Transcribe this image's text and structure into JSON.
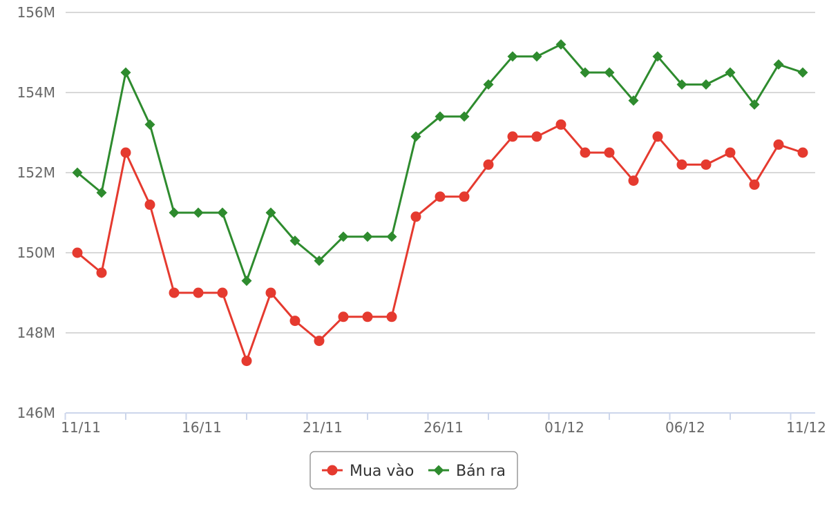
{
  "chart_data": {
    "type": "line",
    "title": "",
    "xlabel": "",
    "ylabel": "",
    "ylim": [
      146,
      156
    ],
    "y_ticks": [
      {
        "value": 146,
        "label": "146M"
      },
      {
        "value": 148,
        "label": "148M"
      },
      {
        "value": 150,
        "label": "150M"
      },
      {
        "value": 152,
        "label": "152M"
      },
      {
        "value": 154,
        "label": "154M"
      },
      {
        "value": 156,
        "label": "156M"
      }
    ],
    "x_tick_labels": [
      {
        "index": 0,
        "label": "11/11"
      },
      {
        "index": 5,
        "label": "16/11"
      },
      {
        "index": 10,
        "label": "21/11"
      },
      {
        "index": 15,
        "label": "26/11"
      },
      {
        "index": 20,
        "label": "01/12"
      },
      {
        "index": 25,
        "label": "06/12"
      },
      {
        "index": 30,
        "label": "11/12"
      }
    ],
    "categories": [
      "11/11",
      "12/11",
      "13/11",
      "14/11",
      "15/11",
      "16/11",
      "17/11",
      "18/11",
      "19/11",
      "20/11",
      "21/11",
      "22/11",
      "23/11",
      "24/11",
      "25/11",
      "26/11",
      "27/11",
      "28/11",
      "29/11",
      "30/11",
      "01/12",
      "02/12",
      "03/12",
      "04/12",
      "05/12",
      "06/12",
      "07/12",
      "08/12",
      "09/12",
      "10/12",
      "11/12"
    ],
    "grid": true,
    "legend_position": "bottom-center",
    "series": [
      {
        "name": "Mua vào",
        "color": "#e53a2f",
        "marker": "circle",
        "values": [
          150.0,
          149.5,
          152.5,
          151.2,
          149.0,
          149.0,
          149.0,
          147.3,
          149.0,
          148.3,
          147.8,
          148.4,
          148.4,
          148.4,
          150.9,
          151.4,
          151.4,
          152.2,
          152.9,
          152.9,
          153.2,
          152.5,
          152.5,
          151.8,
          152.9,
          152.2,
          152.2,
          152.5,
          151.7,
          152.7,
          152.5
        ]
      },
      {
        "name": "Bán ra",
        "color": "#2e8b2e",
        "marker": "diamond",
        "values": [
          152.0,
          151.5,
          154.5,
          153.2,
          151.0,
          151.0,
          151.0,
          149.3,
          151.0,
          150.3,
          149.8,
          150.4,
          150.4,
          150.4,
          152.9,
          153.4,
          153.4,
          154.2,
          154.9,
          154.9,
          155.2,
          154.5,
          154.5,
          153.8,
          154.9,
          154.2,
          154.2,
          154.5,
          153.7,
          154.7,
          154.5
        ]
      }
    ]
  },
  "colors": {
    "grid": "#cccccc",
    "axis": "#ccd6eb",
    "tick_text": "#666666",
    "legend_border": "#999999"
  }
}
